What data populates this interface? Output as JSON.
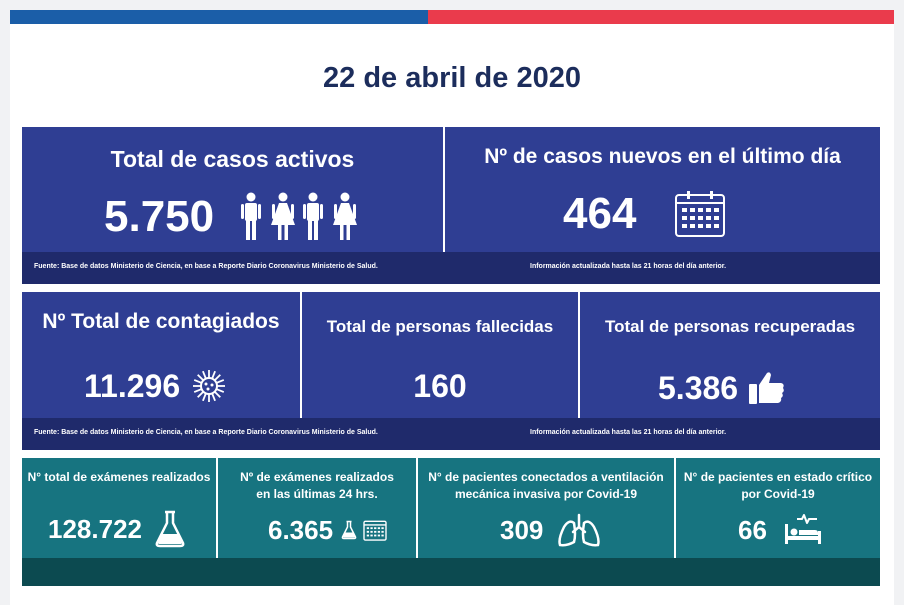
{
  "date": "22 de abril de 2020",
  "section1": {
    "active_title": "Total de casos activos",
    "active_value": "5.750",
    "new_title": "Nº de casos nuevos en el último día",
    "new_value": "464",
    "source_note": "Fuente: Base de datos Ministerio de Ciencia, en base a Reporte Diario Coronavirus Ministerio de Salud.",
    "update_note": "Información actualizada hasta las 21 horas  del día anterior."
  },
  "section2": {
    "total_title": "Nº Total de contagiados",
    "total_value": "11.296",
    "deaths_title": "Total de personas fallecidas",
    "deaths_value": "160",
    "recovered_title": "Total de personas recuperadas",
    "recovered_value": "5.386",
    "source_note": "Fuente: Base de datos Ministerio de Ciencia, en base a Reporte Diario Coronavirus Ministerio de Salud.",
    "update_note": "Información actualizada hasta las 21 horas  del día anterior."
  },
  "section3": {
    "exams_title": "N° total de exámenes realizados",
    "exams_value": "128.722",
    "exams24_title_1": "Nº de exámenes realizados",
    "exams24_title_2": "en las últimas 24 hrs.",
    "exams24_value": "6.365",
    "vent_title_1": "N° de pacientes conectados a ventilación",
    "vent_title_2": "mecánica invasiva por Covid-19",
    "vent_value": "309",
    "critical_title_1": "N° de pacientes en estado crítico",
    "critical_title_2": "por Covid-19",
    "critical_value": "66"
  },
  "icons": [
    "people-icon",
    "calendar-icon",
    "virus-icon",
    "thumbs-up-icon",
    "flask-icon",
    "lungs-icon",
    "hospital-bed-icon"
  ],
  "colors": {
    "blue_panel": "#2f3e93",
    "dark_blue": "#1f2a6b",
    "teal": "#177480",
    "title_text": "#1c2d5c",
    "bar_blue": "#1b5ea8",
    "bar_red": "#ea3b4c"
  }
}
